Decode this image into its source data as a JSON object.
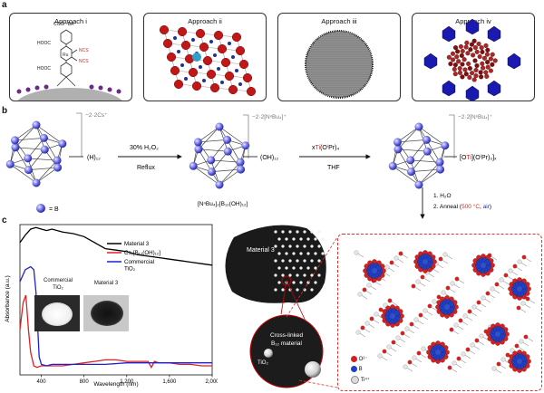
{
  "panel_a": {
    "letter": "a",
    "approaches": [
      {
        "title": "Approach i",
        "labels": {
          "anion": "COO⁻¹BA⁺",
          "acid1": "HOOC",
          "acid2": "HOOC",
          "ncs1": "NCS",
          "ncs2": "NCS",
          "metal": "Ru"
        }
      },
      {
        "title": "Approach ii"
      },
      {
        "title": "Approach iii"
      },
      {
        "title": "Approach iv"
      }
    ]
  },
  "panel_b": {
    "letter": "b",
    "charge1": "−2·2Cs⁺",
    "charge2": "−2·2[NⁿBu₄]⁺",
    "charge3": "−2·2[NⁿBu₄]⁺",
    "sub1": "(H)₁₂",
    "reagent1": "30% H₂O₂",
    "cond1": "Reflux",
    "sub2": "(OH)₁₂",
    "formula2": "[NⁿBu₄]₂[B₁₂(OH)₁₂]",
    "reagent2_pre": "x",
    "reagent2_ti": "Ti",
    "reagent2_post": "(OⁱPr)₄",
    "cond2": "THF",
    "sub3_pre": "[O",
    "sub3_ti": "Ti",
    "sub3_post": "](OⁱPr)₃]ₓ",
    "legend_b": "= B",
    "step1": "1. H₂O",
    "step2_pre": "2. Anneal (",
    "step2_temp": "500 °C",
    "step2_mid": ", ",
    "step2_air": "air",
    "step2_post": ")"
  },
  "panel_c": {
    "letter": "c",
    "photo_label1_a": "Commercial",
    "photo_label1_b": "TiO₂",
    "photo_label2": "Material 3",
    "blob_label": "Material 3",
    "bubble_label_a": "Cross-linked",
    "bubble_label_b": "B₁₂ material",
    "bubble_tio2": "TiO₂",
    "legend_o": "O²⁻",
    "legend_b": "B",
    "legend_ti": "Ti⁴⁺"
  },
  "chart_data": {
    "type": "line",
    "xlabel": "Wavelength (nm)",
    "ylabel": "Absorbance (a.u.)",
    "xlim": [
      200,
      2000
    ],
    "ylim": [
      0,
      1
    ],
    "xticks": [
      "400",
      "800",
      "1,200",
      "1,600",
      "2,000"
    ],
    "xtick_values": [
      400,
      800,
      1200,
      1600,
      2000
    ],
    "series": [
      {
        "name": "Material 3",
        "color": "#000000",
        "x": [
          200,
          250,
          300,
          350,
          400,
          450,
          500,
          600,
          700,
          800,
          900,
          1000,
          1100,
          1200,
          1300,
          1400,
          1500,
          1600,
          1700,
          1800,
          1900,
          2000
        ],
        "y": [
          0.88,
          0.93,
          0.97,
          0.98,
          0.97,
          0.96,
          0.97,
          0.95,
          0.94,
          0.92,
          0.88,
          0.84,
          0.83,
          0.82,
          0.8,
          0.79,
          0.78,
          0.77,
          0.76,
          0.75,
          0.74,
          0.73
        ]
      },
      {
        "name": "Cs₂[B₁₂(OH)₁₂]",
        "color": "#e02020",
        "x": [
          200,
          230,
          255,
          280,
          300,
          330,
          360,
          400,
          500,
          600,
          700,
          800,
          900,
          1000,
          1100,
          1200,
          1300,
          1400,
          1430,
          1460,
          1500,
          1600,
          1700,
          1800,
          1900,
          2000
        ],
        "y": [
          0.3,
          0.48,
          0.53,
          0.3,
          0.15,
          0.06,
          0.05,
          0.06,
          0.06,
          0.06,
          0.07,
          0.08,
          0.09,
          0.1,
          0.1,
          0.09,
          0.09,
          0.09,
          0.05,
          0.09,
          0.08,
          0.08,
          0.07,
          0.07,
          0.06,
          0.06
        ]
      },
      {
        "name": "Commercial TiO₂",
        "color": "#2020d0",
        "x": [
          200,
          250,
          300,
          330,
          350,
          380,
          400,
          450,
          500,
          600,
          800,
          1000,
          1200,
          1400,
          1600,
          1800,
          2000
        ],
        "y": [
          0.62,
          0.7,
          0.72,
          0.7,
          0.55,
          0.12,
          0.07,
          0.06,
          0.07,
          0.07,
          0.07,
          0.07,
          0.08,
          0.08,
          0.08,
          0.08,
          0.08
        ]
      }
    ]
  }
}
